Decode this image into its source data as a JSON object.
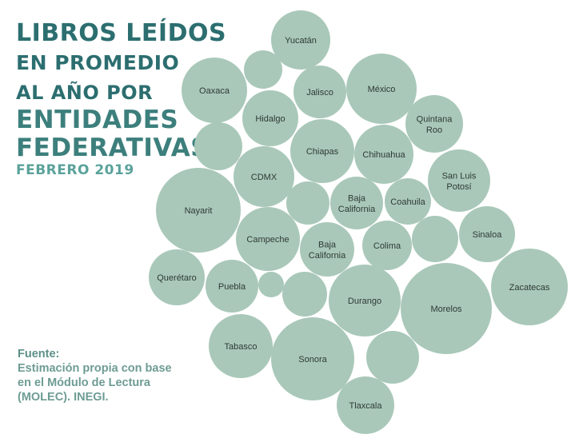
{
  "title": {
    "line1": "LIBROS LEÍDOS",
    "line2": "EN PROMEDIO",
    "line3": "AL AÑO POR",
    "line4": "ENTIDADES",
    "line5": "FEDERATIVAS",
    "date": "FEBRERO 2019"
  },
  "source": {
    "lines": [
      "Fuente:",
      "Estimación propia con base",
      "en el Módulo de Lectura",
      "(MOLEC). INEGI."
    ]
  },
  "colors": {
    "bubble": "#a9c8b9",
    "title_dark": "#2c6e70",
    "title_mid": "#3c7f7c",
    "date": "#5aa29a",
    "source": "#6e9c94"
  },
  "chart_data": {
    "type": "bubble",
    "title": "LIBROS LEÍDOS EN PROMEDIO AL AÑO POR ENTIDADES FEDERATIVAS",
    "subtitle": "FEBRERO 2019",
    "legend": "none",
    "grid": false,
    "bubbles": [
      {
        "label": "Yucatán"
      },
      {
        "label": ""
      },
      {
        "label": "Oaxaca"
      },
      {
        "label": "Jalisco"
      },
      {
        "label": "México"
      },
      {
        "label": "Hidalgo"
      },
      {
        "label": "Quintana Roo"
      },
      {
        "label": ""
      },
      {
        "label": "Chiapas"
      },
      {
        "label": "Chihuahua"
      },
      {
        "label": "CDMX"
      },
      {
        "label": "San Luis Potosí"
      },
      {
        "label": "Nayarit"
      },
      {
        "label": ""
      },
      {
        "label": "Baja California"
      },
      {
        "label": "Coahuila"
      },
      {
        "label": "Campeche"
      },
      {
        "label": "Baja California"
      },
      {
        "label": "Colima"
      },
      {
        "label": ""
      },
      {
        "label": "Sinaloa"
      },
      {
        "label": "Querétaro"
      },
      {
        "label": "Puebla"
      },
      {
        "label": ""
      },
      {
        "label": ""
      },
      {
        "label": "Durango"
      },
      {
        "label": "Morelos"
      },
      {
        "label": "Zacatecas"
      },
      {
        "label": "Tabasco"
      },
      {
        "label": "Sonora"
      },
      {
        "label": ""
      },
      {
        "label": "Tlaxcala"
      }
    ]
  }
}
